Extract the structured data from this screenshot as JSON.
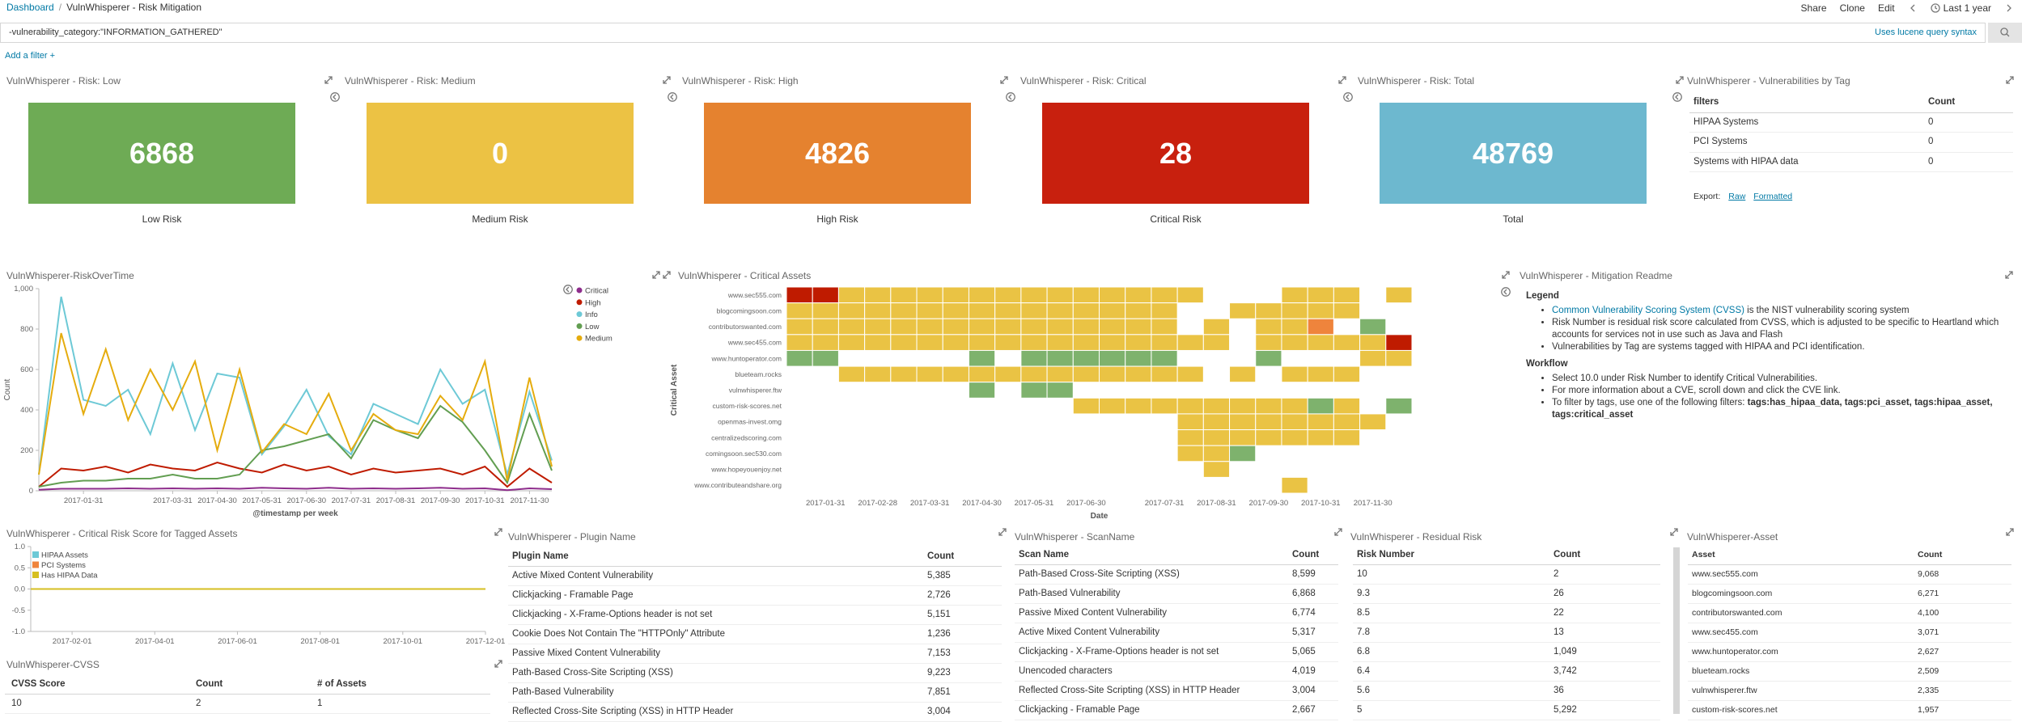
{
  "header": {
    "breadcrumb": [
      "Dashboard",
      "VulnWhisperer - Risk Mitigation"
    ],
    "separator": "/",
    "actions": [
      "Share",
      "Clone",
      "Edit"
    ],
    "time_range": "Last 1 year"
  },
  "query": {
    "text": "-vulnerability_category:\"INFORMATION_GATHERED\"",
    "syntax_link": "Uses lucene query syntax",
    "add_filter": "Add a filter +"
  },
  "metrics": [
    {
      "title": "VulnWhisperer - Risk: Low",
      "value": 6868,
      "label": "Low Risk",
      "color": "#6eab55"
    },
    {
      "title": "VulnWhisperer - Risk: Medium",
      "value": 0,
      "label": "Medium Risk",
      "color": "#ecc244"
    },
    {
      "title": "VulnWhisperer - Risk: High",
      "value": 4826,
      "label": "High Risk",
      "color": "#e5822f"
    },
    {
      "title": "VulnWhisperer - Risk: Critical",
      "value": 28,
      "label": "Critical Risk",
      "color": "#c8200e"
    },
    {
      "title": "VulnWhisperer - Risk: Total",
      "value": 48769,
      "label": "Total",
      "color": "#6db8cf"
    }
  ],
  "tag_table": {
    "title": "VulnWhisperer - Vulnerabilities by Tag",
    "columns": [
      "filters",
      "Count"
    ],
    "rows": [
      [
        "HIPAA Systems",
        "0"
      ],
      [
        "PCI Systems",
        "0"
      ],
      [
        "Systems with HIPAA data",
        "0"
      ]
    ],
    "export": "Export:",
    "links": [
      "Raw",
      "Formatted"
    ]
  },
  "chart_data": [
    {
      "type": "line",
      "title": "VulnWhisperer-RiskOverTime",
      "x_label": "@timestamp per week",
      "y_label": "Count",
      "categories": [
        null,
        null,
        "2017-01-31",
        null,
        null,
        null,
        "2017-03-31",
        null,
        "2017-04-30",
        null,
        "2017-05-31",
        null,
        "2017-06-30",
        null,
        "2017-07-31",
        null,
        "2017-08-31",
        null,
        "2017-09-30",
        null,
        "2017-10-31",
        null,
        "2017-11-30",
        null
      ],
      "ylim": [
        0,
        1000
      ],
      "yticks": [
        0,
        200,
        400,
        600,
        800,
        {
          "value": 1000,
          "label": "1,000"
        }
      ],
      "grid": false,
      "legend": "right",
      "series": [
        {
          "name": "Critical",
          "color": "#8e2d8c",
          "values": [
            5,
            10,
            10,
            10,
            12,
            10,
            12,
            10,
            12,
            10,
            15,
            12,
            10,
            15,
            10,
            12,
            10,
            12,
            15,
            10,
            12,
            3,
            12,
            8
          ]
        },
        {
          "name": "High",
          "color": "#bf1b00",
          "values": [
            20,
            110,
            100,
            120,
            90,
            130,
            110,
            100,
            140,
            110,
            90,
            130,
            100,
            120,
            80,
            110,
            90,
            100,
            110,
            80,
            120,
            20,
            110,
            40
          ]
        },
        {
          "name": "Info",
          "color": "#6dc9d6",
          "values": [
            80,
            960,
            450,
            420,
            500,
            280,
            630,
            300,
            580,
            560,
            180,
            320,
            500,
            270,
            180,
            430,
            380,
            330,
            600,
            430,
            500,
            80,
            490,
            150
          ]
        },
        {
          "name": "Low",
          "color": "#629e51",
          "values": [
            20,
            40,
            50,
            50,
            60,
            60,
            80,
            60,
            60,
            80,
            200,
            220,
            250,
            280,
            160,
            350,
            300,
            260,
            420,
            340,
            200,
            40,
            380,
            100
          ]
        },
        {
          "name": "Medium",
          "color": "#e5ac0e",
          "values": [
            80,
            780,
            380,
            700,
            350,
            600,
            400,
            640,
            200,
            600,
            190,
            330,
            280,
            480,
            200,
            380,
            300,
            280,
            470,
            350,
            640,
            50,
            560,
            120
          ]
        }
      ]
    },
    {
      "type": "heatmap",
      "title": "VulnWhisperer - Critical Assets",
      "x_label": "Date",
      "y_label": "Critical Asset",
      "categories": [
        null,
        "2017-01-31",
        null,
        "2017-02-28",
        null,
        "2017-03-31",
        null,
        "2017-04-30",
        null,
        "2017-05-31",
        null,
        "2017-06-30",
        null,
        null,
        "2017-07-31",
        null,
        "2017-08-31",
        null,
        "2017-09-30",
        null,
        "2017-10-31",
        null,
        "2017-11-30",
        null
      ],
      "rows": [
        "www.sec555.com",
        "blogcomingsoon.com",
        "contributorswanted.com",
        "www.sec455.com",
        "www.huntoperator.com",
        "blueteam.rocks",
        "vulnwhisperer.ftw",
        "custom-risk-scores.net",
        "openmas-invest.omg",
        "centralizedscoring.com",
        "comingsoon.sec530.com",
        "www.hopeyouenjoy.net",
        "www.contributeandshare.org"
      ],
      "colors": {
        "0": "#7eb26d",
        "5": "#eac344",
        "7": "#ef843c",
        "10": "#bf1b00"
      },
      "values": [
        [
          10,
          10,
          5,
          5,
          5,
          5,
          5,
          5,
          5,
          5,
          5,
          5,
          5,
          5,
          5,
          5,
          null,
          null,
          null,
          5,
          5,
          5,
          null,
          5
        ],
        [
          5,
          5,
          5,
          5,
          5,
          5,
          5,
          5,
          5,
          5,
          5,
          5,
          5,
          5,
          5,
          null,
          null,
          5,
          5,
          5,
          5,
          5,
          null,
          null
        ],
        [
          5,
          5,
          5,
          5,
          5,
          5,
          5,
          5,
          5,
          5,
          5,
          5,
          5,
          5,
          5,
          null,
          5,
          null,
          5,
          5,
          7,
          null,
          0,
          null
        ],
        [
          5,
          5,
          5,
          5,
          5,
          5,
          5,
          5,
          5,
          5,
          5,
          5,
          5,
          5,
          5,
          5,
          5,
          null,
          5,
          5,
          5,
          5,
          5,
          10
        ],
        [
          0,
          0,
          null,
          null,
          null,
          null,
          null,
          0,
          null,
          0,
          0,
          0,
          0,
          0,
          0,
          null,
          null,
          null,
          0,
          null,
          null,
          null,
          5,
          5
        ],
        [
          null,
          null,
          5,
          5,
          5,
          5,
          5,
          5,
          5,
          5,
          5,
          5,
          5,
          5,
          5,
          5,
          null,
          5,
          null,
          5,
          5,
          5,
          null,
          null
        ],
        [
          null,
          null,
          null,
          null,
          null,
          null,
          null,
          0,
          null,
          0,
          0,
          null,
          null,
          null,
          null,
          null,
          null,
          null,
          null,
          null,
          null,
          null,
          null,
          null
        ],
        [
          null,
          null,
          null,
          null,
          null,
          null,
          null,
          null,
          null,
          null,
          null,
          5,
          5,
          5,
          5,
          5,
          5,
          5,
          5,
          5,
          0,
          5,
          null,
          0
        ],
        [
          null,
          null,
          null,
          null,
          null,
          null,
          null,
          null,
          null,
          null,
          null,
          null,
          null,
          null,
          null,
          5,
          5,
          5,
          5,
          5,
          5,
          5,
          5,
          null
        ],
        [
          null,
          null,
          null,
          null,
          null,
          null,
          null,
          null,
          null,
          null,
          null,
          null,
          null,
          null,
          null,
          5,
          5,
          5,
          5,
          5,
          5,
          5,
          null,
          null
        ],
        [
          null,
          null,
          null,
          null,
          null,
          null,
          null,
          null,
          null,
          null,
          null,
          null,
          null,
          null,
          null,
          5,
          5,
          0,
          null,
          null,
          null,
          null,
          null,
          null
        ],
        [
          null,
          null,
          null,
          null,
          null,
          null,
          null,
          null,
          null,
          null,
          null,
          null,
          null,
          null,
          null,
          null,
          5,
          null,
          null,
          null,
          null,
          null,
          null,
          null
        ],
        [
          null,
          null,
          null,
          null,
          null,
          null,
          null,
          null,
          null,
          null,
          null,
          null,
          null,
          null,
          null,
          null,
          null,
          null,
          null,
          5,
          null,
          null,
          null,
          null
        ]
      ]
    },
    {
      "type": "line",
      "title": "VulnWhisperer - Critical Risk Score for Tagged Assets",
      "categories": [
        null,
        "2017-02-01",
        null,
        "2017-04-01",
        null,
        "2017-06-01",
        null,
        "2017-08-01",
        null,
        "2017-10-01",
        null,
        "2017-12-01"
      ],
      "ylim": [
        -1,
        1
      ],
      "yticks": [
        {
          "value": -1,
          "label": "-1.0"
        },
        {
          "value": -0.5,
          "label": "-0.5"
        },
        {
          "value": 0,
          "label": "0.0"
        },
        {
          "value": 0.5,
          "label": "0.5"
        },
        {
          "value": 1,
          "label": "1.0"
        }
      ],
      "grid": false,
      "legend": "top-left",
      "series": [
        {
          "name": "HIPAA Assets",
          "color": "#6dc9d6",
          "values": [
            0,
            0,
            0,
            0,
            0,
            0,
            0,
            0,
            0,
            0,
            0,
            0
          ]
        },
        {
          "name": "PCI Systems",
          "color": "#ef843c",
          "values": [
            0,
            0,
            0,
            0,
            0,
            0,
            0,
            0,
            0,
            0,
            0,
            0
          ]
        },
        {
          "name": "Has HIPAA Data",
          "color": "#d6bf21",
          "values": [
            0,
            0,
            0,
            0,
            0,
            0,
            0,
            0,
            0,
            0,
            0,
            0
          ]
        }
      ]
    }
  ],
  "readme": {
    "title": "VulnWhisperer - Mitigation Readme",
    "legend_heading": "Legend",
    "legend_items": [
      [
        "Common Vulnerability Scoring System (CVSS)",
        " is the NIST vulnerability scoring system"
      ],
      [
        "Risk Number is residual risk score calculated from CVSS, which is adjusted to be specific to Heartland which accounts for services not in use such as Java and Flash"
      ],
      [
        "Vulnerabilities by Tag are systems tagged with HIPAA and PCI identification."
      ]
    ],
    "workflow_heading": "Workflow",
    "workflow_items": [
      [
        "Select 10.0 under Risk Number to identify Critical Vulnerabilities."
      ],
      [
        "For more information about a CVE, scroll down and click the CVE link."
      ],
      [
        "To filter by tags, use one of the following filters: ",
        "tags:has_hipaa_data, tags:pci_asset, tags:hipaa_asset, tags:critical_asset"
      ]
    ]
  },
  "cvss_table": {
    "title": "VulnWhisperer-CVSS",
    "columns": [
      "CVSS Score",
      "Count",
      "# of Assets"
    ],
    "rows": [
      [
        "10",
        "2",
        "1"
      ]
    ]
  },
  "plugin_table": {
    "title": "VulnWhisperer - Plugin Name",
    "columns": [
      "Plugin Name",
      "Count"
    ],
    "rows": [
      [
        "Active Mixed Content Vulnerability",
        "5,385"
      ],
      [
        "Clickjacking - Framable Page",
        "2,726"
      ],
      [
        "Clickjacking - X-Frame-Options header is not set",
        "5,151"
      ],
      [
        "Cookie Does Not Contain The \"HTTPOnly\" Attribute",
        "1,236"
      ],
      [
        "Passive Mixed Content Vulnerability",
        "7,153"
      ],
      [
        "Path-Based Cross-Site Scripting (XSS)",
        "9,223"
      ],
      [
        "Path-Based Vulnerability",
        "7,851"
      ],
      [
        "Reflected Cross-Site Scripting (XSS) in HTTP Header",
        "3,004"
      ]
    ]
  },
  "scan_table": {
    "title": "VulnWhisperer - ScanName",
    "columns": [
      "Scan Name",
      "Count"
    ],
    "rows": [
      [
        "Path-Based Cross-Site Scripting (XSS)",
        "8,599"
      ],
      [
        "Path-Based Vulnerability",
        "6,868"
      ],
      [
        "Passive Mixed Content Vulnerability",
        "6,774"
      ],
      [
        "Active Mixed Content Vulnerability",
        "5,317"
      ],
      [
        "Clickjacking - X-Frame-Options header is not set",
        "5,065"
      ],
      [
        "Unencoded characters",
        "4,019"
      ],
      [
        "Reflected Cross-Site Scripting (XSS) in HTTP Header",
        "3,004"
      ],
      [
        "Clickjacking - Framable Page",
        "2,667"
      ]
    ]
  },
  "residual_table": {
    "title": "VulnWhisperer - Residual Risk",
    "columns": [
      "Risk Number",
      "Count"
    ],
    "rows": [
      [
        "10",
        "2"
      ],
      [
        "9.3",
        "26"
      ],
      [
        "8.5",
        "22"
      ],
      [
        "7.8",
        "13"
      ],
      [
        "6.8",
        "1,049"
      ],
      [
        "6.4",
        "3,742"
      ],
      [
        "5.6",
        "36"
      ],
      [
        "5",
        "5,292"
      ]
    ]
  },
  "asset_table": {
    "title": "VulnWhisperer-Asset",
    "columns": [
      "Asset",
      "Count"
    ],
    "rows": [
      [
        "www.sec555.com",
        "9,068"
      ],
      [
        "blogcomingsoon.com",
        "6,271"
      ],
      [
        "contributorswanted.com",
        "4,100"
      ],
      [
        "www.sec455.com",
        "3,071"
      ],
      [
        "www.huntoperator.com",
        "2,627"
      ],
      [
        "blueteam.rocks",
        "2,509"
      ],
      [
        "vulnwhisperer.ftw",
        "2,335"
      ],
      [
        "custom-risk-scores.net",
        "1,957"
      ]
    ]
  }
}
